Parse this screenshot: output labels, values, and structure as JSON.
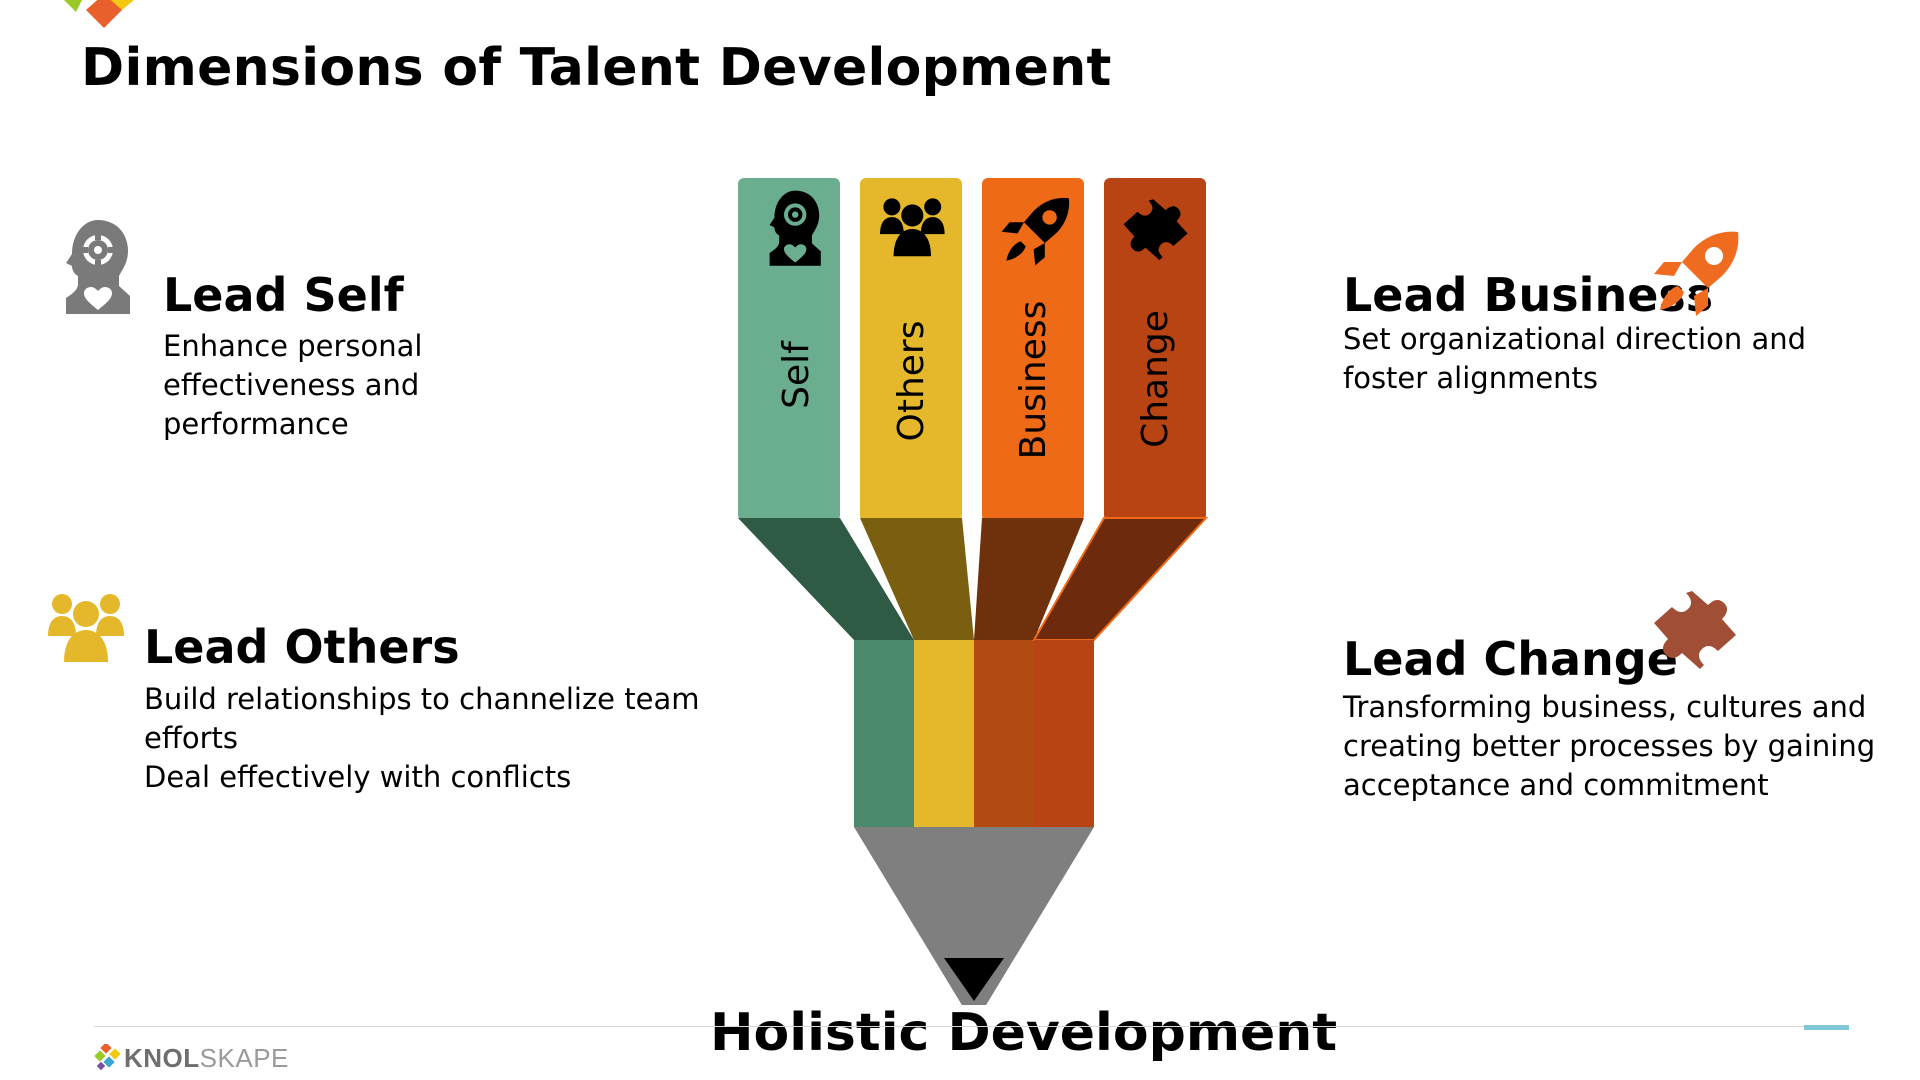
{
  "page": {
    "title": "Dimensions of Talent Development",
    "bottom_title": "Holistic Development"
  },
  "dimensions": [
    {
      "title": "Lead Self",
      "description": [
        "Enhance personal",
        "effectiveness and",
        "performance"
      ],
      "icon": "head-gear-heart-icon",
      "icon_color": "#7a7a7a"
    },
    {
      "title": "Lead Others",
      "description": [
        "Build relationships to channelize team",
        "efforts",
        "Deal effectively with conflicts"
      ],
      "icon": "group-people-icon",
      "icon_color": "#e5b82c"
    },
    {
      "title": "Lead Business",
      "description": [
        "Set organizational direction and",
        "foster alignments"
      ],
      "icon": "rocket-icon",
      "icon_color": "#ef6b1f"
    },
    {
      "title": "Lead Change",
      "description": [
        "Transforming business, cultures and",
        "creating better processes by gaining",
        "acceptance and commitment"
      ],
      "icon": "puzzle-piece-icon",
      "icon_color": "#a04e35"
    }
  ],
  "pencil": {
    "columns": [
      {
        "label": "Self",
        "icon": "head-gear-heart-icon",
        "color": "#6aad8f",
        "dark_color": "#2f5a45",
        "band_color": "#4b8a6c"
      },
      {
        "label": "Others",
        "icon": "group-people-icon",
        "color": "#e5b82c",
        "dark_color": "#7a5f10",
        "band_color": "#e5b82c"
      },
      {
        "label": "Business",
        "icon": "rocket-icon",
        "color": "#ee6a16",
        "dark_color": "#6f300c",
        "band_color": "#b24b12"
      },
      {
        "label": "Change",
        "icon": "puzzle-piece-icon",
        "color": "#b84414",
        "dark_color": "#6e2a0d",
        "band_color": "#b84414"
      }
    ],
    "tip_color": "#7f7f7f",
    "lead_color": "#000000"
  },
  "footer": {
    "logo_bold": "KNOL",
    "logo_light": "SKAPE",
    "accent_color": "#7fc6d6"
  }
}
